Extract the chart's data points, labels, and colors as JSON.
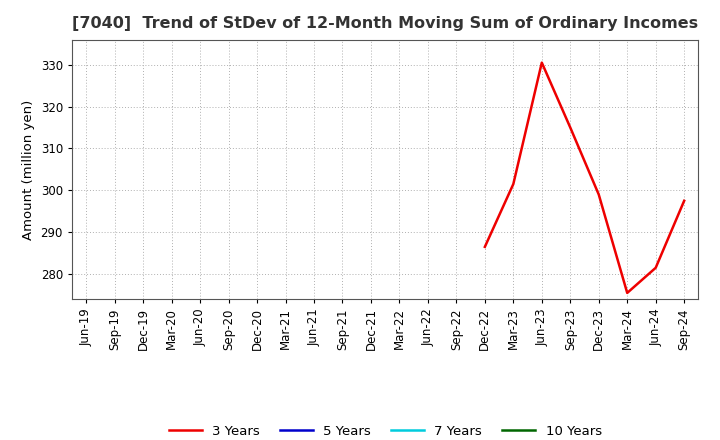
{
  "title": "[7040]  Trend of StDev of 12-Month Moving Sum of Ordinary Incomes",
  "ylabel": "Amount (million yen)",
  "background_color": "#ffffff",
  "plot_bg_color": "#ffffff",
  "grid_color": "#b0b0b0",
  "x_labels": [
    "Jun-19",
    "Sep-19",
    "Dec-19",
    "Mar-20",
    "Jun-20",
    "Sep-20",
    "Dec-20",
    "Mar-21",
    "Jun-21",
    "Sep-21",
    "Dec-21",
    "Mar-22",
    "Jun-22",
    "Sep-22",
    "Dec-22",
    "Mar-23",
    "Jun-23",
    "Sep-23",
    "Dec-23",
    "Mar-24",
    "Jun-24",
    "Sep-24"
  ],
  "series_3y": {
    "label": "3 Years",
    "color": "#ee0000",
    "linewidth": 1.8,
    "data_x": [
      14,
      15,
      16,
      17,
      18,
      19,
      20,
      21
    ],
    "data_y": [
      286.5,
      301.5,
      330.5,
      315.0,
      299.0,
      275.5,
      281.5,
      297.5
    ]
  },
  "series_5y": {
    "label": "5 Years",
    "color": "#0000cc",
    "linewidth": 1.8,
    "data_x": [],
    "data_y": []
  },
  "series_7y": {
    "label": "7 Years",
    "color": "#00ccdd",
    "linewidth": 1.8,
    "data_x": [],
    "data_y": []
  },
  "series_10y": {
    "label": "10 Years",
    "color": "#006600",
    "linewidth": 1.8,
    "data_x": [],
    "data_y": []
  },
  "ylim": [
    274,
    336
  ],
  "yticks": [
    280,
    290,
    300,
    310,
    320,
    330
  ],
  "title_fontsize": 11.5,
  "label_fontsize": 9.5,
  "tick_fontsize": 8.5,
  "legend_fontsize": 9.5
}
